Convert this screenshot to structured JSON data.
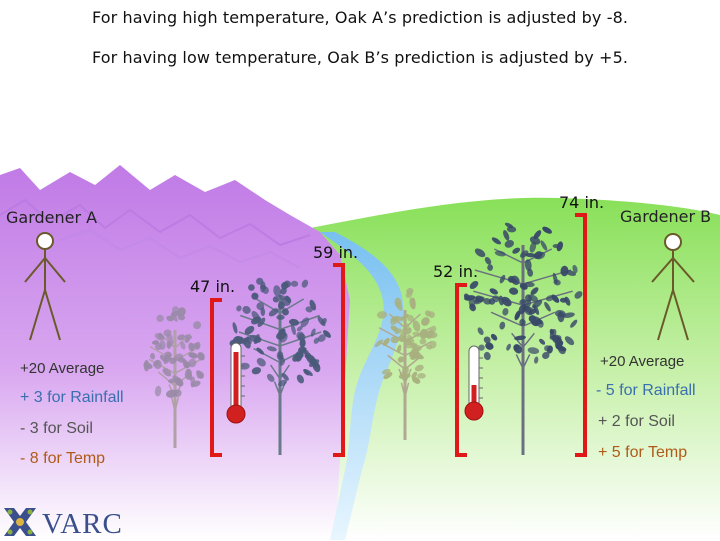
{
  "captions": {
    "line1": "For having high temperature, Oak A’s prediction is adjusted by -8.",
    "line2": "For having low temperature, Oak B’s prediction is adjusted by +5."
  },
  "gardener_a": {
    "name": "Gardener A",
    "average": "+20 Average",
    "rainfall": "+ 3 for Rainfall",
    "soil": "- 3 for Soil",
    "temp": "- 8 for Temp",
    "tree_small_height": "47 in.",
    "tree_large_height": "59 in."
  },
  "gardener_b": {
    "name": "Gardener B",
    "average": "+20 Average",
    "rainfall": "- 5 for Rainfall",
    "soil": "+ 2 for Soil",
    "temp": "+ 5 for Temp",
    "tree_small_height": "52 in.",
    "tree_large_height": "74 in."
  },
  "logo": {
    "text": "VARC"
  },
  "colors": {
    "mountains": "#c890e8",
    "meadow": "#90e060",
    "river": "#7cc8f0",
    "bracket": "#e01818",
    "thermometer": "#d02020",
    "person": "#6a5a2a",
    "rain_text": "#3a6fb0",
    "temp_text": "#b05a18"
  }
}
